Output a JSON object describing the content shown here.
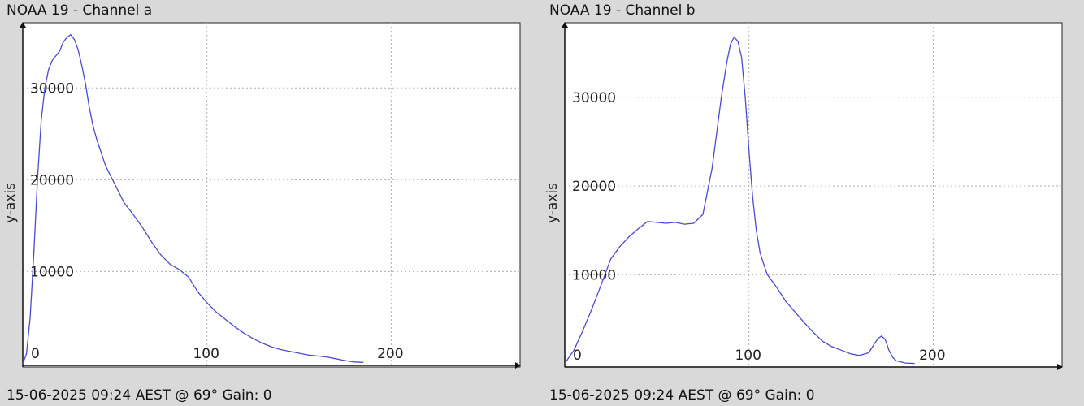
{
  "charts": [
    {
      "title": "NOAA 19 - Channel a",
      "status": "15-06-2025 09:24 AEST @ 69° Gain: 0⁩",
      "chart_data": {
        "type": "line",
        "ylabel": "y-axis",
        "xlim": [
          0,
          270
        ],
        "ylim": [
          -400,
          37100
        ],
        "x_ticks": [
          "0",
          "100",
          "200"
        ],
        "x_tick_values": [
          0,
          100,
          200
        ],
        "y_ticks": [
          "30000",
          "20000",
          "10000"
        ],
        "y_tick_values": [
          30000,
          20000,
          10000
        ],
        "grid": true,
        "color": "#4a4ad4",
        "series": [
          {
            "x": [
              0,
              2,
              4,
              6,
              8,
              10,
              12,
              14,
              16,
              18,
              20,
              22,
              24,
              26,
              28,
              30,
              32,
              34,
              36,
              38,
              40,
              45,
              50,
              55,
              60,
              65,
              70,
              75,
              80,
              85,
              90,
              95,
              100,
              105,
              110,
              115,
              120,
              125,
              130,
              135,
              140,
              145,
              150,
              155,
              160,
              165,
              170,
              175,
              180,
              185
            ],
            "y": [
              0,
              1000,
              5000,
              12000,
              20000,
              26500,
              30000,
              32000,
              33000,
              33500,
              34000,
              35000,
              35500,
              35800,
              35300,
              34200,
              32500,
              30500,
              28000,
              26000,
              24500,
              21500,
              19500,
              17500,
              16200,
              14800,
              13200,
              11800,
              10800,
              10200,
              9400,
              7800,
              6600,
              5600,
              4800,
              4000,
              3300,
              2700,
              2200,
              1800,
              1500,
              1300,
              1100,
              900,
              800,
              700,
              500,
              300,
              150,
              100
            ]
          }
        ]
      }
    },
    {
      "title": "NOAA 19 - Channel b",
      "status": "15-06-2025 09:24 AEST @ 69° Gain: 0⁩",
      "chart_data": {
        "type": "line",
        "ylabel": "y-axis",
        "xlim": [
          0,
          270
        ],
        "ylim": [
          -400,
          38400
        ],
        "x_ticks": [
          "0",
          "100",
          "200"
        ],
        "x_tick_values": [
          0,
          100,
          200
        ],
        "y_ticks": [
          "30000",
          "20000",
          "10000"
        ],
        "y_tick_values": [
          30000,
          20000,
          10000
        ],
        "grid": true,
        "color": "#4a4ad4",
        "series": [
          {
            "x": [
              0,
              5,
              10,
              15,
              20,
              25,
              30,
              35,
              40,
              45,
              50,
              55,
              60,
              65,
              70,
              75,
              80,
              85,
              88,
              90,
              92,
              94,
              96,
              98,
              100,
              102,
              104,
              106,
              108,
              110,
              115,
              120,
              125,
              130,
              135,
              140,
              145,
              150,
              155,
              160,
              165,
              170,
              172,
              174,
              176,
              178,
              180,
              185,
              190
            ],
            "y": [
              0,
              1500,
              3800,
              6300,
              9000,
              11800,
              13200,
              14300,
              15200,
              16000,
              15900,
              15800,
              15900,
              15700,
              15800,
              16800,
              22000,
              30000,
              34000,
              36000,
              36800,
              36300,
              34500,
              30000,
              24000,
              18800,
              15000,
              12500,
              11200,
              10000,
              8600,
              7000,
              5800,
              4600,
              3500,
              2500,
              1900,
              1500,
              1100,
              900,
              1200,
              2800,
              3100,
              2700,
              1500,
              700,
              300,
              50,
              0
            ]
          }
        ]
      }
    }
  ]
}
